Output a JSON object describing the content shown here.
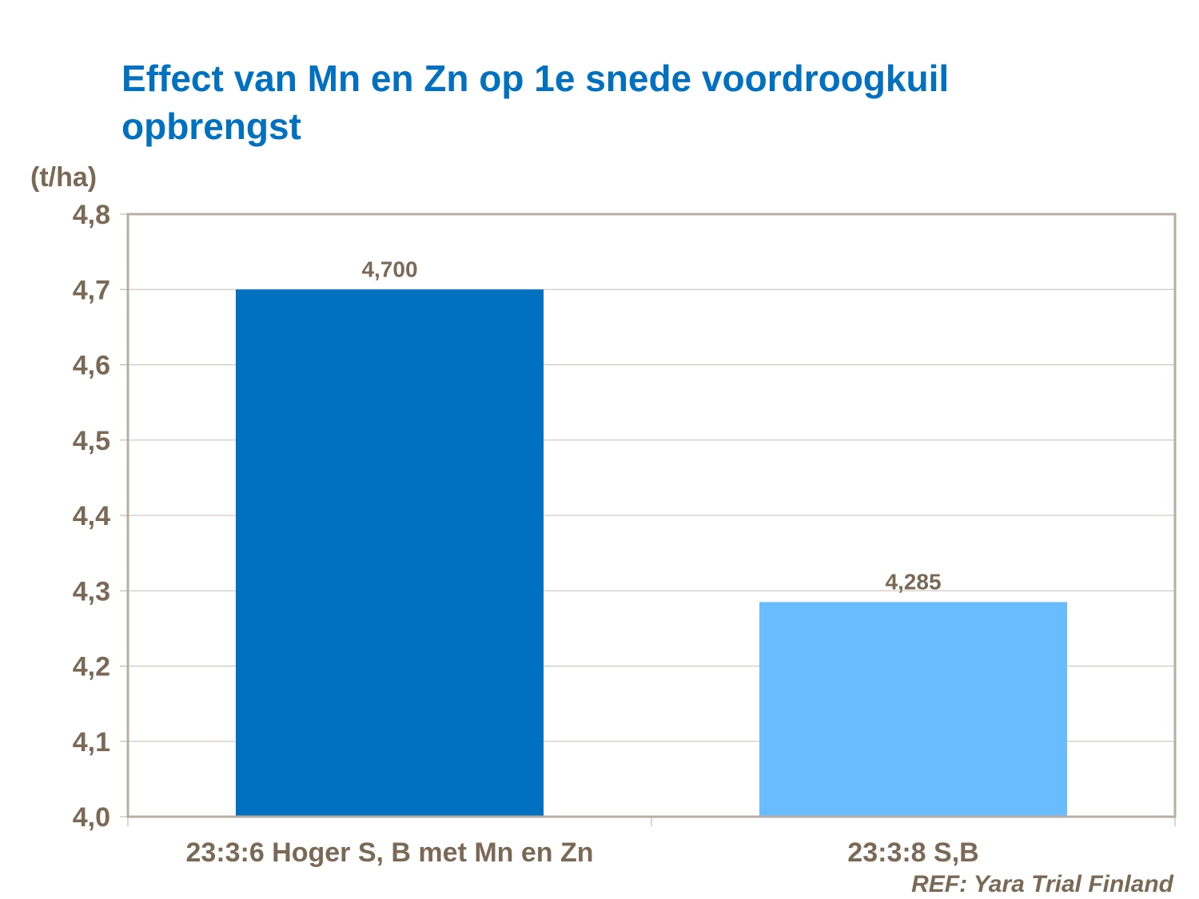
{
  "chart_data": {
    "type": "bar",
    "title": "Effect van Mn en Zn op 1e snede voordroogkuil opbrengst",
    "ylabel": "(t/ha)",
    "xlabel": "",
    "categories": [
      "23:3:6 Hoger S, B met Mn en Zn",
      "23:3:8 S,B"
    ],
    "values": [
      4.7,
      4.285
    ],
    "data_labels": [
      "4,700",
      "4,285"
    ],
    "bar_colors": [
      "#0070c0",
      "#69bdff"
    ],
    "ylim": [
      4.0,
      4.8
    ],
    "yticks": [
      "4,0",
      "4,1",
      "4,2",
      "4,3",
      "4,4",
      "4,5",
      "4,6",
      "4,7",
      "4,8"
    ],
    "grid": true,
    "annotation": "REF: Yara Trial Finland"
  }
}
